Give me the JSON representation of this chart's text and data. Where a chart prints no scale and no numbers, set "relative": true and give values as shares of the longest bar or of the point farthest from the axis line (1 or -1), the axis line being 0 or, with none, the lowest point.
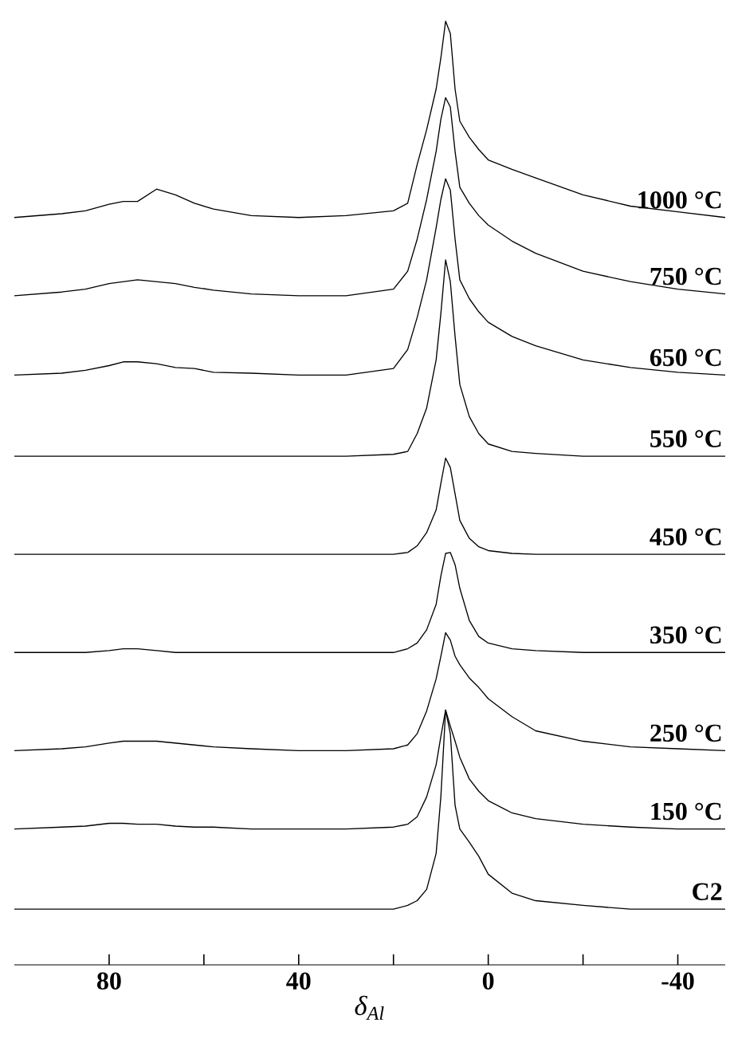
{
  "chart_data": {
    "type": "line",
    "relative": true,
    "xlabel": "δ$_{Al}$",
    "xlim": [
      100,
      -50
    ],
    "xticks": [
      80,
      {
        "value": 60,
        "label": null
      },
      40,
      {
        "value": 20,
        "label": null
      },
      0,
      {
        "value": -20,
        "label": null
      },
      -40
    ],
    "x": [
      100,
      90,
      85,
      80,
      77,
      74,
      70,
      66,
      62,
      58,
      50,
      40,
      30,
      20,
      17,
      15,
      13,
      11,
      10,
      9,
      8,
      7,
      6,
      4,
      2,
      0,
      -5,
      -10,
      -20,
      -30,
      -40,
      -50
    ],
    "series": [
      {
        "name": "1000 °C",
        "color": "#000000",
        "values": [
          0.792,
          0.796,
          0.799,
          0.806,
          0.809,
          0.809,
          0.822,
          0.816,
          0.807,
          0.801,
          0.794,
          0.792,
          0.794,
          0.799,
          0.807,
          0.848,
          0.885,
          0.928,
          0.961,
          1,
          0.987,
          0.928,
          0.894,
          0.877,
          0.864,
          0.853,
          0.843,
          0.834,
          0.816,
          0.804,
          0.798,
          0.792
        ]
      },
      {
        "name": "750 °C",
        "color": "#000000",
        "values": [
          0.709,
          0.713,
          0.716,
          0.722,
          0.724,
          0.726,
          0.724,
          0.722,
          0.718,
          0.715,
          0.711,
          0.709,
          0.709,
          0.716,
          0.735,
          0.769,
          0.811,
          0.862,
          0.896,
          0.919,
          0.909,
          0.862,
          0.824,
          0.807,
          0.794,
          0.784,
          0.767,
          0.754,
          0.735,
          0.724,
          0.716,
          0.711
        ]
      },
      {
        "name": "650 °C",
        "color": "#000000",
        "values": [
          0.625,
          0.627,
          0.63,
          0.635,
          0.639,
          0.639,
          0.637,
          0.633,
          0.632,
          0.628,
          0.627,
          0.625,
          0.625,
          0.632,
          0.652,
          0.686,
          0.726,
          0.781,
          0.811,
          0.833,
          0.821,
          0.769,
          0.726,
          0.706,
          0.692,
          0.681,
          0.666,
          0.656,
          0.641,
          0.633,
          0.628,
          0.625
        ]
      },
      {
        "name": "550 °C",
        "color": "#000000",
        "values": [
          0.539,
          0.539,
          0.539,
          0.539,
          0.539,
          0.539,
          0.539,
          0.539,
          0.539,
          0.539,
          0.539,
          0.539,
          0.539,
          0.541,
          0.544,
          0.563,
          0.59,
          0.641,
          0.69,
          0.747,
          0.724,
          0.666,
          0.615,
          0.581,
          0.563,
          0.552,
          0.544,
          0.542,
          0.539,
          0.539,
          0.539,
          0.539
        ]
      },
      {
        "name": "450 °C",
        "color": "#000000",
        "values": [
          0.435,
          0.435,
          0.435,
          0.435,
          0.435,
          0.435,
          0.435,
          0.435,
          0.435,
          0.435,
          0.435,
          0.435,
          0.435,
          0.435,
          0.437,
          0.444,
          0.458,
          0.482,
          0.51,
          0.537,
          0.527,
          0.499,
          0.471,
          0.452,
          0.443,
          0.439,
          0.436,
          0.435,
          0.435,
          0.435,
          0.435,
          0.435
        ]
      },
      {
        "name": "350 °C",
        "color": "#000000",
        "values": [
          0.331,
          0.331,
          0.331,
          0.333,
          0.335,
          0.335,
          0.333,
          0.331,
          0.331,
          0.331,
          0.331,
          0.331,
          0.331,
          0.331,
          0.335,
          0.341,
          0.355,
          0.382,
          0.412,
          0.436,
          0.437,
          0.424,
          0.399,
          0.365,
          0.348,
          0.341,
          0.335,
          0.333,
          0.331,
          0.331,
          0.331,
          0.331
        ]
      },
      {
        "name": "250 °C",
        "color": "#000000",
        "values": [
          0.227,
          0.229,
          0.231,
          0.235,
          0.237,
          0.237,
          0.237,
          0.235,
          0.233,
          0.231,
          0.229,
          0.227,
          0.227,
          0.229,
          0.233,
          0.245,
          0.269,
          0.303,
          0.327,
          0.352,
          0.344,
          0.327,
          0.318,
          0.304,
          0.294,
          0.282,
          0.263,
          0.248,
          0.237,
          0.231,
          0.229,
          0.227
        ]
      },
      {
        "name": "150 °C",
        "color": "#000000",
        "values": [
          0.144,
          0.146,
          0.147,
          0.15,
          0.15,
          0.149,
          0.149,
          0.147,
          0.146,
          0.146,
          0.144,
          0.144,
          0.144,
          0.146,
          0.149,
          0.157,
          0.178,
          0.212,
          0.242,
          0.27,
          0.253,
          0.237,
          0.22,
          0.197,
          0.184,
          0.174,
          0.161,
          0.155,
          0.149,
          0.146,
          0.144,
          0.144
        ]
      },
      {
        "name": "C2",
        "color": "#000000",
        "values": [
          0.059,
          0.059,
          0.059,
          0.059,
          0.059,
          0.059,
          0.059,
          0.059,
          0.059,
          0.059,
          0.059,
          0.059,
          0.059,
          0.059,
          0.063,
          0.068,
          0.08,
          0.118,
          0.178,
          0.27,
          0.245,
          0.169,
          0.144,
          0.13,
          0.115,
          0.096,
          0.076,
          0.068,
          0.063,
          0.059,
          0.059,
          0.059
        ]
      }
    ]
  }
}
